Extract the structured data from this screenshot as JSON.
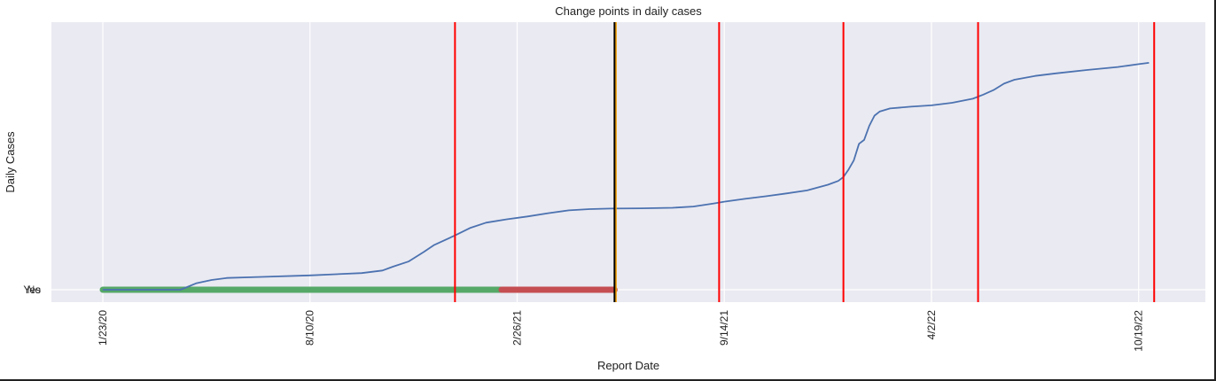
{
  "chart_data": {
    "type": "line",
    "title": "Change points in daily cases",
    "xlabel": "Report Date",
    "ylabel": "Daily Cases",
    "x_tick_labels": [
      "1/23/20",
      "8/10/20",
      "2/26/21",
      "9/14/21",
      "4/2/22",
      "10/19/22"
    ],
    "x_tick_days": [
      0,
      200,
      400,
      600,
      800,
      1000
    ],
    "y_tick_labels": [
      "Yes",
      "No"
    ],
    "grid": true,
    "background": "#eaeaf2",
    "series": [
      {
        "color": "#4c72b0",
        "x_days": [
          0,
          75,
          90,
          105,
          120,
          150,
          200,
          250,
          270,
          280,
          295,
          310,
          320,
          340,
          355,
          370,
          390,
          410,
          430,
          450,
          470,
          490,
          520,
          550,
          570,
          590,
          600,
          620,
          640,
          660,
          680,
          700,
          710,
          715,
          720,
          725,
          730,
          735,
          740,
          745,
          750,
          760,
          780,
          800,
          820,
          840,
          850,
          860,
          870,
          880,
          900,
          920,
          950,
          980,
          1000,
          1010
        ],
        "y_level": [
          0.0,
          0.0,
          0.025,
          0.038,
          0.046,
          0.05,
          0.056,
          0.065,
          0.075,
          0.09,
          0.11,
          0.148,
          0.175,
          0.212,
          0.242,
          0.262,
          0.275,
          0.286,
          0.299,
          0.31,
          0.315,
          0.317,
          0.318,
          0.32,
          0.325,
          0.337,
          0.344,
          0.355,
          0.365,
          0.376,
          0.388,
          0.41,
          0.425,
          0.44,
          0.47,
          0.505,
          0.57,
          0.585,
          0.64,
          0.68,
          0.696,
          0.708,
          0.715,
          0.72,
          0.73,
          0.746,
          0.762,
          0.78,
          0.805,
          0.82,
          0.835,
          0.845,
          0.858,
          0.87,
          0.881,
          0.886
        ]
      }
    ],
    "change_points_days": [
      340,
      595,
      715,
      845,
      1015
    ],
    "change_point_color": "#ff0000",
    "marker_line": {
      "day": 494,
      "color": "#000000",
      "edge_color": "#f5a300"
    },
    "status_bar": [
      {
        "label": "Yes",
        "from_day": 0,
        "to_day": 385,
        "color": "#55a868"
      },
      {
        "label": "No",
        "from_day": 385,
        "to_day": 494,
        "color": "#c44e52"
      }
    ]
  }
}
